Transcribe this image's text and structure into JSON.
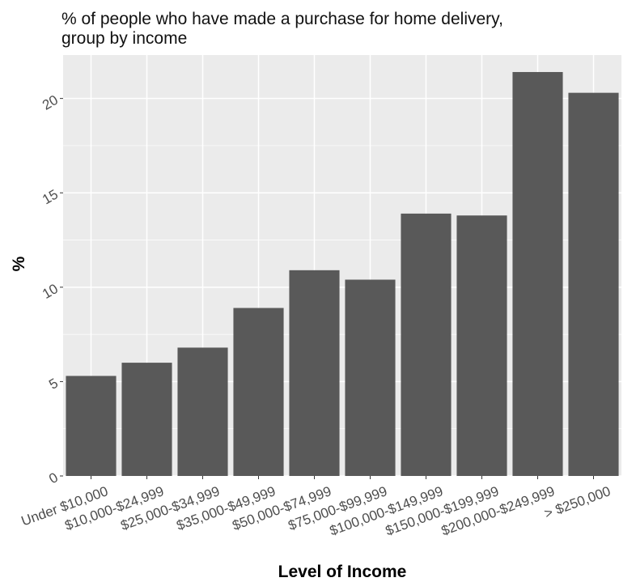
{
  "chart_data": {
    "type": "bar",
    "title": " % of people who have made a purchase for home delivery,\ngroup by income",
    "xlabel": "Level of Income",
    "ylabel": "%",
    "categories": [
      "Under $10,000",
      "$10,000-$24,999",
      "$25,000-$34,999",
      "$35,000-$49,999",
      "$50,000-$74,999",
      "$75,000-$99,999",
      "$100,000-$149,999",
      "$150,000-$199,999",
      "$200,000-$249,999",
      "> $250,000"
    ],
    "values": [
      5.3,
      6.0,
      6.8,
      8.9,
      10.9,
      10.4,
      13.9,
      13.8,
      21.4,
      20.3
    ],
    "ylim": [
      0,
      22.3
    ],
    "yticks": [
      0,
      5,
      10,
      15,
      20
    ],
    "grid": true,
    "colors": {
      "panel": "#ebebeb",
      "grid": "#ffffff",
      "bar": "#595959"
    }
  }
}
